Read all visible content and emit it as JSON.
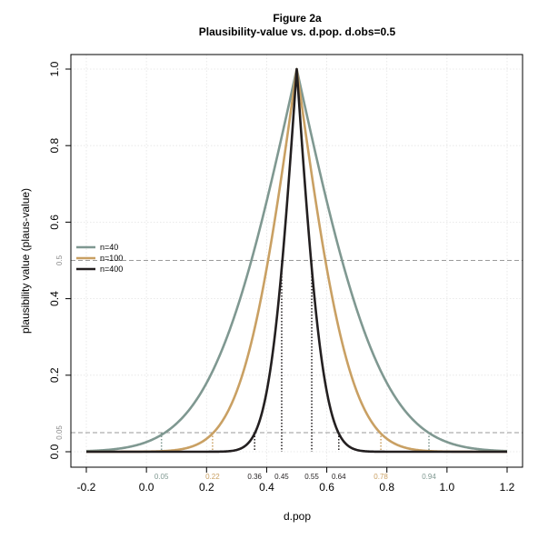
{
  "chart_data": {
    "type": "line",
    "title": "Figure 2a",
    "subtitle": "Plausibility-value vs. d.pop. d.obs=0.5",
    "xlabel": "d.pop",
    "ylabel": "plausibility value (plaus-value)",
    "xlim": [
      -0.2,
      1.2
    ],
    "ylim": [
      0.0,
      1.0
    ],
    "x_ticks": [
      -0.2,
      0.0,
      0.2,
      0.4,
      0.6,
      0.8,
      1.0,
      1.2
    ],
    "x_tick_labels": [
      "-0.2",
      "0.0",
      "0.2",
      "0.4",
      "0.6",
      "0.8",
      "1.0",
      "1.2"
    ],
    "y_ticks": [
      0.0,
      0.2,
      0.4,
      0.6,
      0.8,
      1.0
    ],
    "y_tick_labels": [
      "0.0",
      "0.2",
      "0.4",
      "0.6",
      "0.8",
      "1.0"
    ],
    "grid": true,
    "d_obs": 0.5,
    "legend_position": "left",
    "series": [
      {
        "name": "n=40",
        "n": 40,
        "color": "#7f9891"
      },
      {
        "name": "n=100",
        "n": 100,
        "color": "#c9a063"
      },
      {
        "name": "n=400",
        "n": 400,
        "color": "#231f20"
      }
    ],
    "hlines": [
      {
        "y": 0.5,
        "label": "0.5"
      },
      {
        "y": 0.05,
        "label": "0.05"
      }
    ],
    "vlines": [
      {
        "x": 0.05,
        "label": "0.05",
        "height": 0.05,
        "color": "#7f9891"
      },
      {
        "x": 0.22,
        "label": "0.22",
        "height": 0.05,
        "color": "#c9a063"
      },
      {
        "x": 0.36,
        "label": "0.36",
        "height": 0.05,
        "color": "#231f20"
      },
      {
        "x": 0.45,
        "label": "0.45",
        "height": 0.5,
        "color": "#231f20"
      },
      {
        "x": 0.55,
        "label": "0.55",
        "height": 0.5,
        "color": "#231f20"
      },
      {
        "x": 0.64,
        "label": "0.64",
        "height": 0.05,
        "color": "#231f20"
      },
      {
        "x": 0.78,
        "label": "0.78",
        "height": 0.05,
        "color": "#c9a063"
      },
      {
        "x": 0.94,
        "label": "0.94",
        "height": 0.05,
        "color": "#7f9891"
      }
    ]
  }
}
